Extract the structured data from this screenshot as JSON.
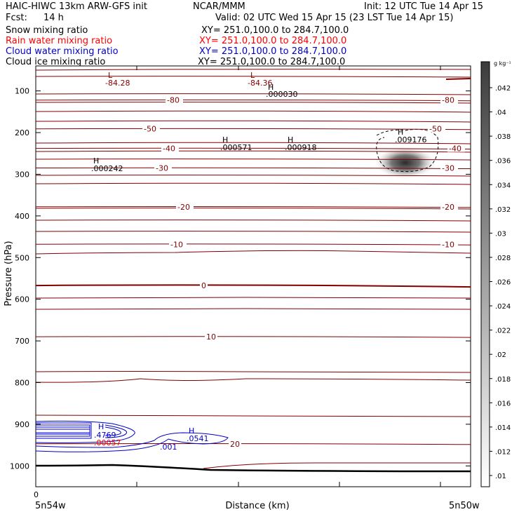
{
  "header": {
    "title": "HAIC-HIWC 13km ARW-GFS init",
    "org": "NCAR/MMM",
    "init": "Init: 12 UTC Tue 14 Apr 15",
    "fcst_label": "Fcst:",
    "fcst_value": "14 h",
    "valid": "Valid: 02 UTC Wed 15 Apr 15 (23 LST Tue 14 Apr 15)",
    "fields": [
      {
        "name": "Snow mixing ratio",
        "xy": "XY= 251.0,100.0 to 284.7,100.0",
        "color": "#000000"
      },
      {
        "name": "Rain water mixing ratio",
        "xy": "XY= 251.0,100.0 to 284.7,100.0",
        "color": "#ff0000"
      },
      {
        "name": "Cloud water mixing ratio",
        "xy": "XY= 251.0,100.0 to 284.7,100.0",
        "color": "#0000cc"
      },
      {
        "name": "Cloud ice mixing ratio",
        "xy": "XY= 251.0,100.0 to 284.7,100.0",
        "color": "#000000"
      }
    ]
  },
  "chart_data": {
    "type": "contour",
    "xlabel": "Distance (km)",
    "ylabel": "Pressure (hPa)",
    "x_left_label": "5n54w",
    "x_right_label": "5n50w",
    "x_zero_label": "0",
    "y_ticks": [
      100,
      200,
      300,
      400,
      500,
      600,
      700,
      800,
      900,
      1000
    ],
    "ylim": [
      1050,
      40
    ],
    "temperature_contours": [
      {
        "value": -80,
        "label": "-80",
        "p": 122
      },
      {
        "value": -50,
        "label": "-50",
        "p": 191
      },
      {
        "value": -40,
        "label": "-40",
        "p": 238
      },
      {
        "value": -30,
        "label": "-30",
        "p": 285
      },
      {
        "value": -20,
        "label": "-20",
        "p": 378
      },
      {
        "value": -10,
        "label": "-10",
        "p": 468
      },
      {
        "value": 0,
        "label": "0",
        "p": 567
      },
      {
        "value": 10,
        "label": "10",
        "p": 690
      },
      {
        "value": 20,
        "label": "20",
        "p": 947
      }
    ],
    "extrema_labels": [
      {
        "type": "L",
        "value": "-84.28"
      },
      {
        "type": "L",
        "value": "-84.36"
      },
      {
        "type": "H",
        "value": ".000030"
      },
      {
        "type": "H",
        "value": ".000571"
      },
      {
        "type": "H",
        "value": ".000918"
      },
      {
        "type": "H",
        "value": ".000242"
      },
      {
        "type": "H",
        "value": ".009176"
      },
      {
        "type": "H",
        "value": ".4769"
      },
      {
        "type": "H",
        "value": ".0541"
      },
      {
        "type": "",
        "value": ".00057"
      },
      {
        "type": "",
        "value": ".001"
      }
    ],
    "colorbar": {
      "unit": "g kg⁻¹",
      "ticks": [
        ".042",
        ".04",
        ".038",
        ".036",
        ".034",
        ".032",
        ".03",
        ".028",
        ".026",
        ".024",
        ".022",
        ".02",
        ".018",
        ".016",
        ".014",
        ".012",
        ".01"
      ]
    }
  }
}
